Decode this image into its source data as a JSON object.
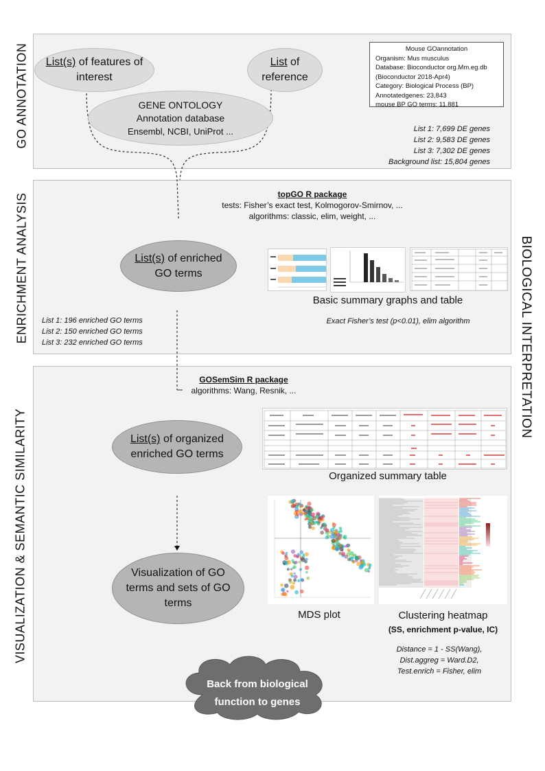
{
  "sections": {
    "go_annotation": "GO ANNOTATION",
    "enrichment_analysis": "ENRICHMENT ANALYSIS",
    "visualization": "VISUALIZATION & SEMANTIC SIMILARITY",
    "biological_interpretation": "BIOLOGICAL INTERPRETATION"
  },
  "features": {
    "underlined": "List(s)",
    "rest_line1": " of features of",
    "line2": "interest"
  },
  "reference": {
    "underlined": "List",
    "rest_line1": " of",
    "line2": "reference"
  },
  "gene_ontology": {
    "title": "GENE ONTOLOGY",
    "subtitle": "Annotation database",
    "sources": "Ensembl, NCBI, UniProt  ..."
  },
  "info_box": {
    "title": "Mouse GOannotation",
    "lines": [
      "Organism: Mus musculus",
      "Database: Bioconductor org.Mm.eg.db",
      "(Bioconductor 2018-Apr4)",
      "Category: Biological Process (BP)",
      "Annotatedgenes: 23,843",
      "mouse BP GO terms: 11,881"
    ]
  },
  "gene_lists": [
    "List 1: 7,699 DE genes",
    "List 2: 9,583 DE genes",
    "List 3: 7,302 DE genes",
    "Background list: 15,804 genes"
  ],
  "topgo": {
    "title": "topGO R package",
    "tests": "tests: Fisher’s exact test, Kolmogorov-Smirnov, ...",
    "algorithms": "algorithms: classic, elim, weight, ..."
  },
  "enriched": {
    "underlined": "List(s)",
    "rest_line1": " of enriched",
    "line2": "GO terms"
  },
  "summary_caption": "Basic summary graphs and table",
  "enrich_params": "Exact Fisher’s test (p<0.01), elim algorithm",
  "enriched_lists": [
    "List 1: 196 enriched GO terms",
    "List 2: 150 enriched GO terms",
    "List 3: 232 enriched GO terms"
  ],
  "gosemsim": {
    "title": "GOSemSim R package",
    "algorithms": "algorithms: Wang, Resnik, ..."
  },
  "organized": {
    "underlined": "List(s)",
    "rest_line1": " of organized",
    "line2": "enriched GO terms"
  },
  "organized_caption": "Organized summary table",
  "visualization_ellipse": {
    "line1": "Visualization of GO",
    "line2": "terms and sets of GO",
    "line3": "terms"
  },
  "mds_caption": "MDS plot",
  "heatmap_caption": {
    "line1": "Clustering heatmap",
    "line2": "(SS, enrichment p-value, IC)"
  },
  "clustering_params": [
    "Distance = 1 - SS(Wang),",
    "Dist.aggreg = Ward.D2,",
    "Test.enrich = Fisher,  elim"
  ],
  "back_cloud": {
    "line1": "Back from biological",
    "line2": "function to genes"
  },
  "colors": {
    "panel": "#f2f2f2",
    "ellipse_light": "#dcdcdc",
    "ellipse_mid": "#b5b5b5",
    "cloud": "#6e6e6e"
  }
}
